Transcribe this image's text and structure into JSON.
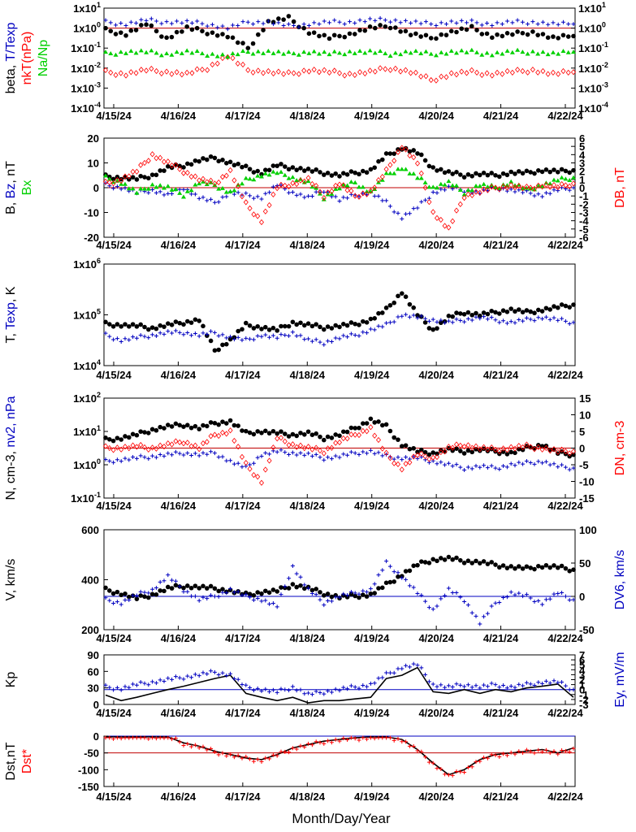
{
  "chart_data": [
    {
      "type": "scatter",
      "ylabel_left": [
        {
          "text": "beta, ",
          "color": "#000000"
        },
        {
          "text": "T/Texp",
          "color": "#0000c0"
        }
      ],
      "ylabel_left2": [
        {
          "text": "nkT(nPa)",
          "color": "#ff0000"
        }
      ],
      "ylabel_left3": [
        {
          "text": "Na/Np",
          "color": "#00d000"
        }
      ],
      "yscale": "log",
      "ylim": [
        0.0001,
        10
      ],
      "yticks_left": [
        "1x10-4",
        "1x10-3",
        "1x10-2",
        "1x10-1",
        "1x100",
        "1x101"
      ],
      "yticks_right": [
        "1x10-4",
        "1x10-3",
        "1x10-2",
        "1x10-1",
        "1x100",
        "1x101"
      ],
      "reference_line": {
        "y": 1,
        "color": "#c00000"
      },
      "series": [
        {
          "name": "beta",
          "color": "#000000",
          "marker": "dot",
          "level_log": [
            -0.1,
            -0.3,
            0.2,
            -0.5,
            0.0,
            -0.2,
            -0.4,
            -1.0,
            0.3,
            0.5,
            -0.2,
            -0.5,
            -0.3,
            0.0,
            0.1,
            -0.3,
            -0.5,
            -0.2,
            0.0,
            -0.4,
            -0.3,
            -0.2,
            -0.5,
            -0.4
          ]
        },
        {
          "name": "T/Texp",
          "color": "#0000c0",
          "marker": "plus",
          "level_log": [
            0.3,
            0.2,
            0.4,
            0.3,
            0.3,
            0.2,
            0.0,
            0.3,
            0.3,
            0.1,
            0.2,
            0.3,
            0.3,
            0.4,
            0.4,
            0.3,
            0.2,
            0.3,
            0.3,
            0.2,
            0.3,
            0.3,
            0.2,
            0.2
          ]
        },
        {
          "name": "nkT",
          "color": "#ff0000",
          "marker": "diamond",
          "level_log": [
            -2.2,
            -2.3,
            -2.1,
            -2.2,
            -2.3,
            -2.0,
            -1.4,
            -2.1,
            -2.2,
            -2.3,
            -2.1,
            -2.2,
            -2.3,
            -2.2,
            -2.0,
            -2.2,
            -2.6,
            -2.3,
            -2.2,
            -2.3,
            -2.2,
            -2.1,
            -2.3,
            -2.2
          ]
        },
        {
          "name": "Na/Np",
          "color": "#00d000",
          "marker": "triangle",
          "level_log": [
            -1.3,
            -1.2,
            -1.2,
            -1.3,
            -1.2,
            -1.3,
            -1.4,
            -1.2,
            -1.2,
            -1.3,
            -1.2,
            -1.3,
            -1.2,
            -1.2,
            -1.3,
            -1.2,
            -1.3,
            -1.2,
            -1.2,
            -1.3,
            -1.2,
            -1.2,
            -1.3,
            -1.2
          ]
        }
      ]
    },
    {
      "type": "scatter",
      "ylabel_left": [
        {
          "text": "B, ",
          "color": "#000000"
        },
        {
          "text": "Bz",
          "color": "#0000c0"
        },
        {
          "text": ", nT",
          "color": "#000000"
        }
      ],
      "ylabel_left2": [
        {
          "text": "Bx",
          "color": "#00d000"
        }
      ],
      "ylabel_right": [
        {
          "text": "DB, nT",
          "color": "#ff0000"
        }
      ],
      "ylim": [
        -20,
        20
      ],
      "y2lim": [
        -6,
        6
      ],
      "yticks_left": [
        "20",
        "10",
        "0",
        "-10",
        "-20"
      ],
      "yticks_right": [
        "6",
        "5",
        "4",
        "3",
        "2",
        "1",
        "0",
        "-1",
        "-2",
        "-3",
        "-4",
        "-5",
        "-6"
      ],
      "reference_line": {
        "y": 0,
        "color": "#c00000"
      },
      "series": [
        {
          "name": "B",
          "color": "#000000",
          "marker": "dot",
          "values": [
            4.5,
            4,
            3.5,
            5,
            8,
            9,
            11,
            12,
            10,
            8,
            6,
            9,
            8,
            7,
            6,
            5,
            6,
            7,
            13,
            16,
            14,
            8,
            6,
            5,
            5.5,
            5,
            6,
            6,
            7,
            6.5,
            7
          ]
        },
        {
          "name": "Bz",
          "color": "#0000c0",
          "marker": "plus",
          "values": [
            1,
            0,
            -2,
            -1,
            -3,
            0,
            -4,
            -6,
            -2,
            -3,
            -4,
            1,
            -2,
            -4,
            -1,
            -5,
            -3,
            -2,
            -6,
            -12,
            -8,
            -2,
            0,
            -1,
            -2,
            0,
            -1,
            -2,
            -3,
            -1,
            0
          ]
        },
        {
          "name": "Bx",
          "color": "#00d000",
          "marker": "triangle",
          "values": [
            4,
            2,
            -2,
            1,
            0,
            -3,
            2,
            1,
            -2,
            3,
            5,
            6,
            4,
            2,
            -4,
            0,
            2,
            -2,
            5,
            8,
            4,
            0,
            2,
            -2,
            1,
            0,
            2,
            -1,
            1,
            3,
            4
          ]
        },
        {
          "name": "DB",
          "color": "#ff0000",
          "marker": "diamond",
          "values": [
            0.5,
            1,
            2,
            4,
            3,
            2,
            1,
            0.5,
            2,
            -2,
            -4,
            0,
            0.5,
            1,
            -1,
            0.5,
            -1,
            -0.5,
            2,
            5,
            3,
            -3,
            -5,
            -1,
            -0.5,
            0,
            0.2,
            -0.1,
            0.3,
            0.1,
            0.5
          ],
          "axis": "right"
        }
      ]
    },
    {
      "type": "scatter",
      "ylabel_left": [
        {
          "text": "T, ",
          "color": "#000000"
        },
        {
          "text": "Texp",
          "color": "#0000c0"
        },
        {
          "text": ", K",
          "color": "#000000"
        }
      ],
      "yscale": "log",
      "ylim": [
        10000,
        1000000
      ],
      "yticks_left": [
        "1x106",
        "1x105",
        "1x104"
      ],
      "series": [
        {
          "name": "T",
          "color": "#000000",
          "marker": "dot",
          "level_log": [
            4.82,
            4.8,
            4.78,
            4.74,
            4.8,
            4.85,
            4.9,
            4.3,
            4.5,
            4.8,
            4.75,
            4.7,
            4.85,
            4.8,
            4.75,
            4.78,
            4.82,
            4.9,
            5.1,
            5.45,
            5.0,
            4.7,
            4.95,
            5.05,
            5.0,
            5.05,
            5.1,
            5.05,
            5.1,
            5.15,
            5.2
          ]
        },
        {
          "name": "Texp",
          "color": "#0000c0",
          "marker": "plus",
          "level_log": [
            4.6,
            4.5,
            4.55,
            4.6,
            4.65,
            4.65,
            4.6,
            4.65,
            4.55,
            4.5,
            4.6,
            4.55,
            4.65,
            4.5,
            4.45,
            4.55,
            4.6,
            4.7,
            4.8,
            5.0,
            4.95,
            4.9,
            4.85,
            4.9,
            4.95,
            4.9,
            4.85,
            4.9,
            4.95,
            4.9,
            4.85
          ]
        }
      ]
    },
    {
      "type": "scatter",
      "ylabel_left": [
        {
          "text": "N, cm-3, ",
          "color": "#000000"
        },
        {
          "text": "nv2, nPa",
          "color": "#0000c0"
        }
      ],
      "ylabel_right": [
        {
          "text": "DN, cm-3",
          "color": "#ff0000"
        }
      ],
      "yscale": "log",
      "ylim": [
        0.1,
        100
      ],
      "y2lim": [
        -15,
        15
      ],
      "yticks_left": [
        "1x102",
        "1x101",
        "1x100",
        "1x10-1"
      ],
      "yticks_right": [
        "15",
        "10",
        "5",
        "0",
        "-5",
        "-10",
        "-15"
      ],
      "reference_line": {
        "y2": 0,
        "color": "#c00000"
      },
      "series": [
        {
          "name": "N",
          "color": "#000000",
          "marker": "dot",
          "level_log": [
            0.75,
            0.8,
            0.9,
            1.05,
            1.15,
            1.2,
            1.1,
            1.25,
            1.3,
            0.95,
            1.0,
            0.95,
            0.9,
            0.95,
            0.8,
            0.9,
            1.1,
            1.35,
            1.15,
            0.6,
            0.4,
            0.35,
            0.45,
            0.4,
            0.45,
            0.4,
            0.35,
            0.5,
            0.6,
            0.35,
            0.3
          ]
        },
        {
          "name": "nv2",
          "color": "#0000c0",
          "marker": "plus",
          "level_log": [
            0.1,
            0.15,
            0.2,
            0.25,
            0.3,
            0.35,
            0.3,
            0.35,
            0.1,
            -0.1,
            0.3,
            0.4,
            0.35,
            0.3,
            0.2,
            0.25,
            0.35,
            0.4,
            0.25,
            0.2,
            0.2,
            0.1,
            0.0,
            -0.1,
            -0.05,
            -0.1,
            0.0,
            0.05,
            0.1,
            -0.05,
            -0.1
          ]
        },
        {
          "name": "DN",
          "color": "#ff0000",
          "marker": "diamond",
          "values": [
            0,
            0,
            0.5,
            0,
            1,
            2,
            0,
            4,
            5,
            -5,
            -10,
            3,
            1,
            0,
            -1,
            2,
            4,
            6,
            -2,
            -6,
            -2,
            -3,
            0,
            1,
            0,
            -0.5,
            0,
            0.5,
            0,
            -1,
            -1
          ],
          "axis": "right"
        }
      ]
    },
    {
      "type": "scatter",
      "ylabel_left": [
        {
          "text": "V, km/s",
          "color": "#000000"
        }
      ],
      "ylabel_right": [
        {
          "text": "DV6, km/s",
          "color": "#0000c0"
        }
      ],
      "ylim": [
        200,
        600
      ],
      "y2lim": [
        -50,
        100
      ],
      "yticks_left": [
        "600",
        "400",
        "200"
      ],
      "yticks_right": [
        "100",
        "50",
        "0",
        "-50"
      ],
      "reference_line": {
        "y2": 0,
        "color": "#0000c0"
      },
      "series": [
        {
          "name": "V",
          "color": "#000000",
          "marker": "dot",
          "values": [
            360,
            345,
            325,
            340,
            365,
            375,
            370,
            365,
            355,
            340,
            350,
            355,
            380,
            365,
            345,
            330,
            335,
            340,
            380,
            420,
            460,
            480,
            485,
            475,
            470,
            460,
            450,
            445,
            455,
            450,
            440
          ]
        },
        {
          "name": "DV6",
          "color": "#0000c0",
          "marker": "plus",
          "values": [
            -5,
            -10,
            2,
            10,
            30,
            10,
            -5,
            0,
            10,
            0,
            -5,
            -15,
            45,
            10,
            -10,
            0,
            5,
            10,
            50,
            30,
            5,
            -20,
            10,
            -5,
            -40,
            -10,
            5,
            0,
            -10,
            5,
            -5
          ],
          "axis": "right"
        }
      ]
    },
    {
      "type": "line",
      "ylabel_left": [
        {
          "text": "Kp",
          "color": "#000000"
        }
      ],
      "ylabel_right": [
        {
          "text": "Ey, mV/m",
          "color": "#0000c0"
        }
      ],
      "ylim": [
        0,
        90
      ],
      "y2lim": [
        -3,
        7
      ],
      "yticks_left": [
        "90",
        "60",
        "30",
        "0"
      ],
      "yticks_right": [
        "7",
        "6",
        "5",
        "4",
        "3",
        "2",
        "1",
        "0",
        "-1",
        "-2",
        "-3"
      ],
      "reference_line": {
        "y": 27,
        "color": "#0000c0"
      },
      "series": [
        {
          "name": "Kp",
          "color": "#000000",
          "marker": "line",
          "values": [
            17,
            7,
            13,
            20,
            27,
            33,
            40,
            47,
            53,
            20,
            13,
            7,
            13,
            3,
            7,
            7,
            10,
            13,
            47,
            53,
            67,
            23,
            20,
            27,
            20,
            27,
            23,
            30,
            33,
            37,
            13
          ]
        },
        {
          "name": "Ey",
          "color": "#0000c0",
          "marker": "plus",
          "values": [
            0.5,
            0.2,
            1.0,
            1.5,
            2.0,
            2.5,
            3.0,
            3.5,
            3.0,
            0.5,
            0.0,
            -0.5,
            0.5,
            -1.0,
            -0.5,
            0.0,
            0.5,
            1.0,
            3.0,
            4.5,
            5.0,
            1.0,
            0.5,
            1.0,
            0.5,
            1.0,
            0.5,
            1.0,
            1.5,
            1.5,
            0.0
          ],
          "axis": "right"
        }
      ]
    },
    {
      "type": "line",
      "ylabel_left": [
        {
          "text": "Dst,nT",
          "color": "#000000"
        }
      ],
      "ylabel_left2": [
        {
          "text": "Dst*",
          "color": "#ff0000"
        }
      ],
      "ylim": [
        -150,
        0
      ],
      "yticks_left": [
        "0",
        "-50",
        "-100",
        "-150"
      ],
      "reference_lines": [
        {
          "y": 0,
          "color": "#0000c0"
        },
        {
          "y": -50,
          "color": "#c00000"
        }
      ],
      "series": [
        {
          "name": "Dst",
          "color": "#000000",
          "marker": "line",
          "values": [
            5,
            6,
            8,
            6,
            0,
            -20,
            -30,
            -45,
            -55,
            -65,
            -70,
            -55,
            -35,
            -25,
            -15,
            -10,
            -5,
            -2,
            0,
            -10,
            -40,
            -80,
            -115,
            -100,
            -70,
            -55,
            -50,
            -45,
            -40,
            -50,
            -35
          ]
        },
        {
          "name": "Dst*",
          "color": "#ff0000",
          "marker": "plus",
          "values": [
            3,
            4,
            6,
            4,
            -2,
            -22,
            -32,
            -47,
            -57,
            -67,
            -72,
            -57,
            -37,
            -27,
            -17,
            -12,
            -7,
            -4,
            -2,
            -12,
            -42,
            -82,
            -120,
            -102,
            -72,
            -57,
            -52,
            -47,
            -42,
            -52,
            -37
          ]
        }
      ]
    }
  ],
  "x_tick_labels": [
    "4/15/24",
    "4/16/24",
    "4/17/24",
    "4/18/24",
    "4/19/24",
    "4/20/24",
    "4/21/24",
    "4/22/24"
  ],
  "xlabel": "Month/Day/Year"
}
